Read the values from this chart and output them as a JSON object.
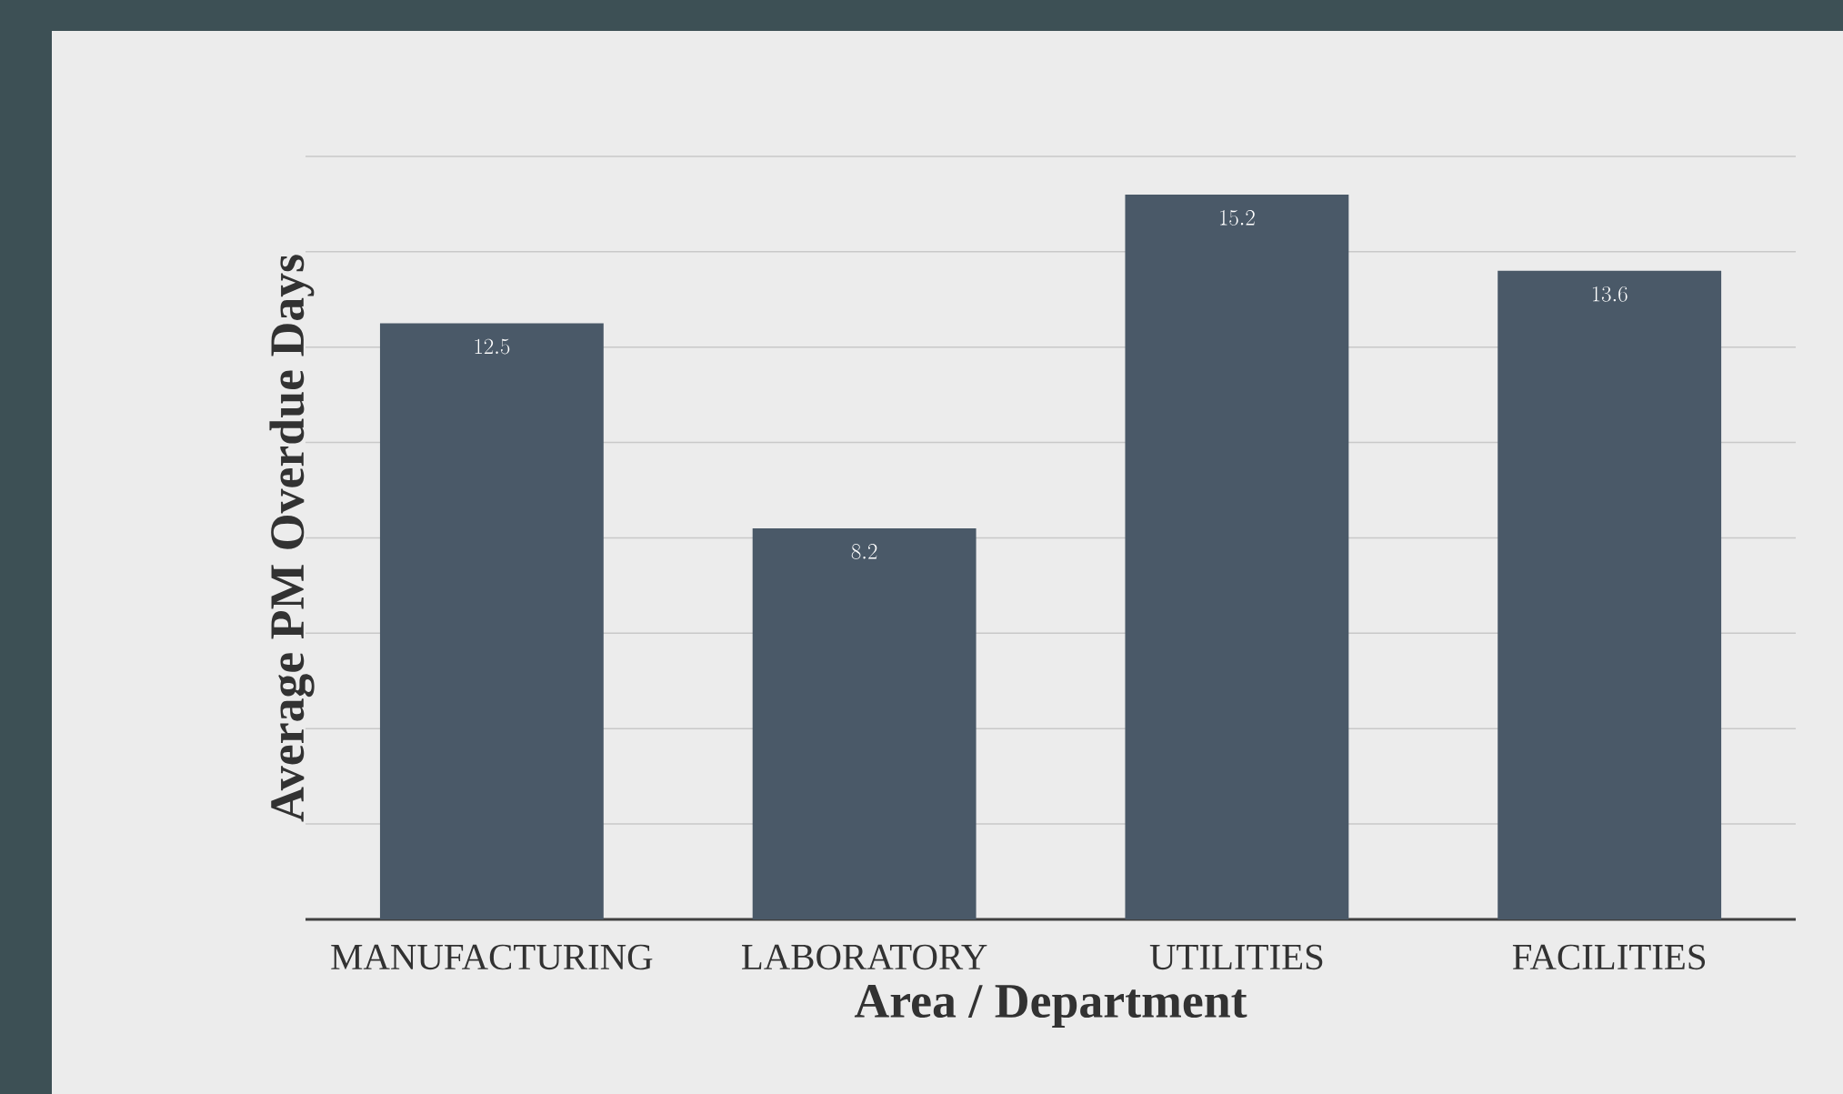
{
  "chart_data": {
    "type": "bar",
    "xlabel": "Area / Department",
    "ylabel": "Average PM Overdue Days",
    "categories": [
      "MANUFACTURING",
      "LABORATORY",
      "UTILITIES",
      "FACILITIES"
    ],
    "values": [
      12.5,
      8.2,
      15.2,
      13.6
    ],
    "color": "#4a5968",
    "ylim": [
      0,
      16
    ],
    "yticks": [
      {
        "value": 2,
        "label": null
      },
      {
        "value": 4,
        "label": null
      },
      {
        "value": 6,
        "label": null
      },
      {
        "value": 8,
        "label": null
      },
      {
        "value": 10,
        "label": null
      },
      {
        "value": 12,
        "label": null
      },
      {
        "value": 14,
        "label": null
      },
      {
        "value": 16,
        "label": null
      }
    ],
    "tick_labels": "x",
    "grid": "y",
    "data_labels": true
  }
}
